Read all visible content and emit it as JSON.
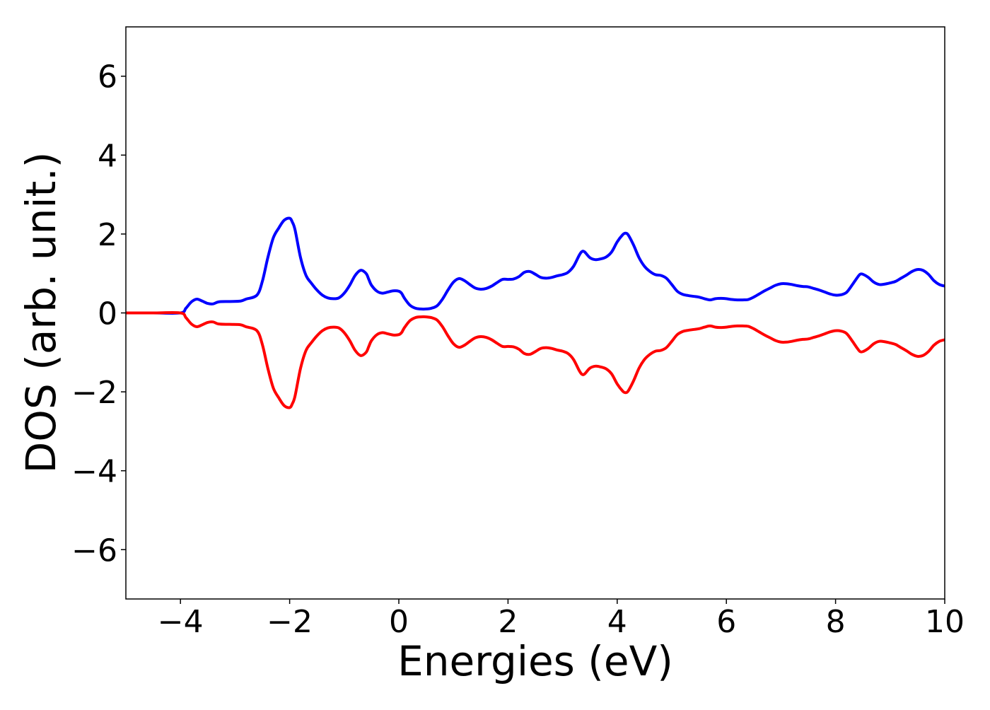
{
  "chart_data": {
    "type": "line",
    "title": "",
    "xlabel": "Energies (eV)",
    "ylabel": "DOS (arb. unit.)",
    "xlim": [
      -5,
      10
    ],
    "ylim": [
      -7.25,
      7.25
    ],
    "x_ticks": [
      -4,
      -2,
      0,
      2,
      4,
      6,
      8,
      10
    ],
    "x_tick_labels": [
      "−4",
      "−2",
      "0",
      "2",
      "4",
      "6",
      "8",
      "10"
    ],
    "y_ticks": [
      6,
      4,
      2,
      0,
      -2,
      -4,
      -6
    ],
    "y_tick_labels": [
      "6",
      "4",
      "2",
      "0",
      "−2",
      "−4",
      "−6"
    ],
    "grid": false,
    "legend": "none",
    "series": [
      {
        "color": "#0000ff",
        "x": [
          -5.0,
          -4.5,
          -4.0,
          -3.9,
          -3.8,
          -3.7,
          -3.6,
          -3.5,
          -3.4,
          -3.3,
          -3.1,
          -2.9,
          -2.8,
          -2.6,
          -2.5,
          -2.4,
          -2.3,
          -2.2,
          -2.1,
          -2.0,
          -1.95,
          -1.9,
          -1.8,
          -1.7,
          -1.6,
          -1.5,
          -1.4,
          -1.3,
          -1.2,
          -1.1,
          -1.0,
          -0.9,
          -0.8,
          -0.7,
          -0.6,
          -0.55,
          -0.5,
          -0.4,
          -0.3,
          -0.2,
          -0.1,
          0.0,
          0.05,
          0.1,
          0.2,
          0.3,
          0.4,
          0.5,
          0.6,
          0.7,
          0.8,
          0.9,
          1.0,
          1.1,
          1.2,
          1.3,
          1.4,
          1.5,
          1.6,
          1.7,
          1.8,
          1.9,
          2.0,
          2.1,
          2.2,
          2.3,
          2.4,
          2.5,
          2.6,
          2.7,
          2.8,
          2.9,
          3.0,
          3.1,
          3.2,
          3.3,
          3.35,
          3.4,
          3.5,
          3.6,
          3.7,
          3.8,
          3.9,
          4.0,
          4.1,
          4.15,
          4.2,
          4.3,
          4.4,
          4.5,
          4.6,
          4.7,
          4.8,
          4.9,
          5.0,
          5.1,
          5.2,
          5.3,
          5.4,
          5.5,
          5.6,
          5.7,
          5.8,
          5.9,
          6.0,
          6.1,
          6.2,
          6.3,
          6.4,
          6.5,
          6.6,
          6.7,
          6.8,
          6.9,
          7.0,
          7.1,
          7.2,
          7.3,
          7.4,
          7.5,
          7.6,
          7.7,
          7.8,
          7.9,
          8.0,
          8.1,
          8.2,
          8.3,
          8.4,
          8.45,
          8.5,
          8.6,
          8.7,
          8.8,
          8.9,
          9.0,
          9.1,
          9.2,
          9.3,
          9.4,
          9.5,
          9.6,
          9.7,
          9.8,
          9.9,
          10.0
        ],
        "y": [
          0.0,
          0.0,
          0.0,
          0.12,
          0.28,
          0.35,
          0.3,
          0.24,
          0.23,
          0.28,
          0.29,
          0.3,
          0.35,
          0.45,
          0.8,
          1.4,
          1.9,
          2.15,
          2.35,
          2.4,
          2.3,
          2.1,
          1.4,
          0.95,
          0.75,
          0.58,
          0.45,
          0.38,
          0.36,
          0.38,
          0.5,
          0.7,
          0.95,
          1.08,
          1.0,
          0.85,
          0.7,
          0.55,
          0.5,
          0.53,
          0.56,
          0.55,
          0.5,
          0.38,
          0.2,
          0.12,
          0.1,
          0.1,
          0.12,
          0.18,
          0.35,
          0.58,
          0.78,
          0.87,
          0.82,
          0.72,
          0.63,
          0.6,
          0.62,
          0.68,
          0.77,
          0.85,
          0.85,
          0.86,
          0.92,
          1.03,
          1.05,
          0.98,
          0.9,
          0.88,
          0.9,
          0.94,
          0.97,
          1.03,
          1.18,
          1.45,
          1.55,
          1.55,
          1.4,
          1.35,
          1.37,
          1.42,
          1.55,
          1.8,
          1.98,
          2.02,
          1.98,
          1.72,
          1.4,
          1.18,
          1.05,
          0.97,
          0.95,
          0.88,
          0.72,
          0.55,
          0.47,
          0.44,
          0.42,
          0.4,
          0.36,
          0.33,
          0.36,
          0.37,
          0.36,
          0.34,
          0.33,
          0.33,
          0.34,
          0.4,
          0.48,
          0.56,
          0.63,
          0.7,
          0.74,
          0.74,
          0.72,
          0.69,
          0.67,
          0.66,
          0.62,
          0.58,
          0.53,
          0.48,
          0.45,
          0.46,
          0.52,
          0.7,
          0.9,
          0.98,
          0.98,
          0.9,
          0.78,
          0.72,
          0.73,
          0.76,
          0.8,
          0.88,
          0.96,
          1.05,
          1.1,
          1.08,
          0.98,
          0.82,
          0.72,
          0.68
        ],
        "linewidth": "bold"
      },
      {
        "color": "#ff0000",
        "x": [
          -5.0,
          -4.5,
          -4.0,
          -3.9,
          -3.8,
          -3.7,
          -3.6,
          -3.5,
          -3.4,
          -3.3,
          -3.1,
          -2.9,
          -2.8,
          -2.6,
          -2.5,
          -2.4,
          -2.3,
          -2.2,
          -2.1,
          -2.0,
          -1.95,
          -1.9,
          -1.8,
          -1.7,
          -1.6,
          -1.5,
          -1.4,
          -1.3,
          -1.2,
          -1.1,
          -1.0,
          -0.9,
          -0.8,
          -0.7,
          -0.6,
          -0.55,
          -0.5,
          -0.4,
          -0.3,
          -0.2,
          -0.1,
          0.0,
          0.05,
          0.1,
          0.2,
          0.3,
          0.4,
          0.5,
          0.6,
          0.7,
          0.8,
          0.9,
          1.0,
          1.1,
          1.2,
          1.3,
          1.4,
          1.5,
          1.6,
          1.7,
          1.8,
          1.9,
          2.0,
          2.1,
          2.2,
          2.3,
          2.4,
          2.5,
          2.6,
          2.7,
          2.8,
          2.9,
          3.0,
          3.1,
          3.2,
          3.3,
          3.35,
          3.4,
          3.5,
          3.6,
          3.7,
          3.8,
          3.9,
          4.0,
          4.1,
          4.15,
          4.2,
          4.3,
          4.4,
          4.5,
          4.6,
          4.7,
          4.8,
          4.9,
          5.0,
          5.1,
          5.2,
          5.3,
          5.4,
          5.5,
          5.6,
          5.7,
          5.8,
          5.9,
          6.0,
          6.1,
          6.2,
          6.3,
          6.4,
          6.5,
          6.6,
          6.7,
          6.8,
          6.9,
          7.0,
          7.1,
          7.2,
          7.3,
          7.4,
          7.5,
          7.6,
          7.7,
          7.8,
          7.9,
          8.0,
          8.1,
          8.2,
          8.3,
          8.4,
          8.45,
          8.5,
          8.6,
          8.7,
          8.8,
          8.9,
          9.0,
          9.1,
          9.2,
          9.3,
          9.4,
          9.5,
          9.6,
          9.7,
          9.8,
          9.9,
          10.0
        ],
        "y": [
          0.0,
          0.0,
          0.0,
          -0.12,
          -0.28,
          -0.35,
          -0.3,
          -0.24,
          -0.23,
          -0.28,
          -0.29,
          -0.3,
          -0.35,
          -0.45,
          -0.8,
          -1.4,
          -1.9,
          -2.15,
          -2.35,
          -2.4,
          -2.3,
          -2.1,
          -1.4,
          -0.95,
          -0.75,
          -0.58,
          -0.45,
          -0.38,
          -0.36,
          -0.38,
          -0.5,
          -0.7,
          -0.95,
          -1.08,
          -1.0,
          -0.85,
          -0.7,
          -0.55,
          -0.5,
          -0.53,
          -0.56,
          -0.55,
          -0.5,
          -0.38,
          -0.2,
          -0.12,
          -0.1,
          -0.1,
          -0.12,
          -0.18,
          -0.35,
          -0.58,
          -0.78,
          -0.87,
          -0.82,
          -0.72,
          -0.63,
          -0.6,
          -0.62,
          -0.68,
          -0.77,
          -0.85,
          -0.85,
          -0.86,
          -0.92,
          -1.03,
          -1.05,
          -0.98,
          -0.9,
          -0.88,
          -0.9,
          -0.94,
          -0.97,
          -1.03,
          -1.18,
          -1.45,
          -1.55,
          -1.55,
          -1.4,
          -1.35,
          -1.37,
          -1.42,
          -1.55,
          -1.8,
          -1.98,
          -2.02,
          -1.98,
          -1.72,
          -1.4,
          -1.18,
          -1.05,
          -0.97,
          -0.95,
          -0.88,
          -0.72,
          -0.55,
          -0.47,
          -0.44,
          -0.42,
          -0.4,
          -0.36,
          -0.33,
          -0.36,
          -0.37,
          -0.36,
          -0.34,
          -0.33,
          -0.33,
          -0.34,
          -0.4,
          -0.48,
          -0.56,
          -0.63,
          -0.7,
          -0.74,
          -0.74,
          -0.72,
          -0.69,
          -0.67,
          -0.66,
          -0.62,
          -0.58,
          -0.53,
          -0.48,
          -0.45,
          -0.46,
          -0.52,
          -0.7,
          -0.9,
          -0.98,
          -0.98,
          -0.9,
          -0.78,
          -0.72,
          -0.73,
          -0.76,
          -0.8,
          -0.88,
          -0.96,
          -1.05,
          -1.1,
          -1.08,
          -0.98,
          -0.82,
          -0.72,
          -0.68
        ],
        "linewidth": "bold"
      }
    ]
  }
}
